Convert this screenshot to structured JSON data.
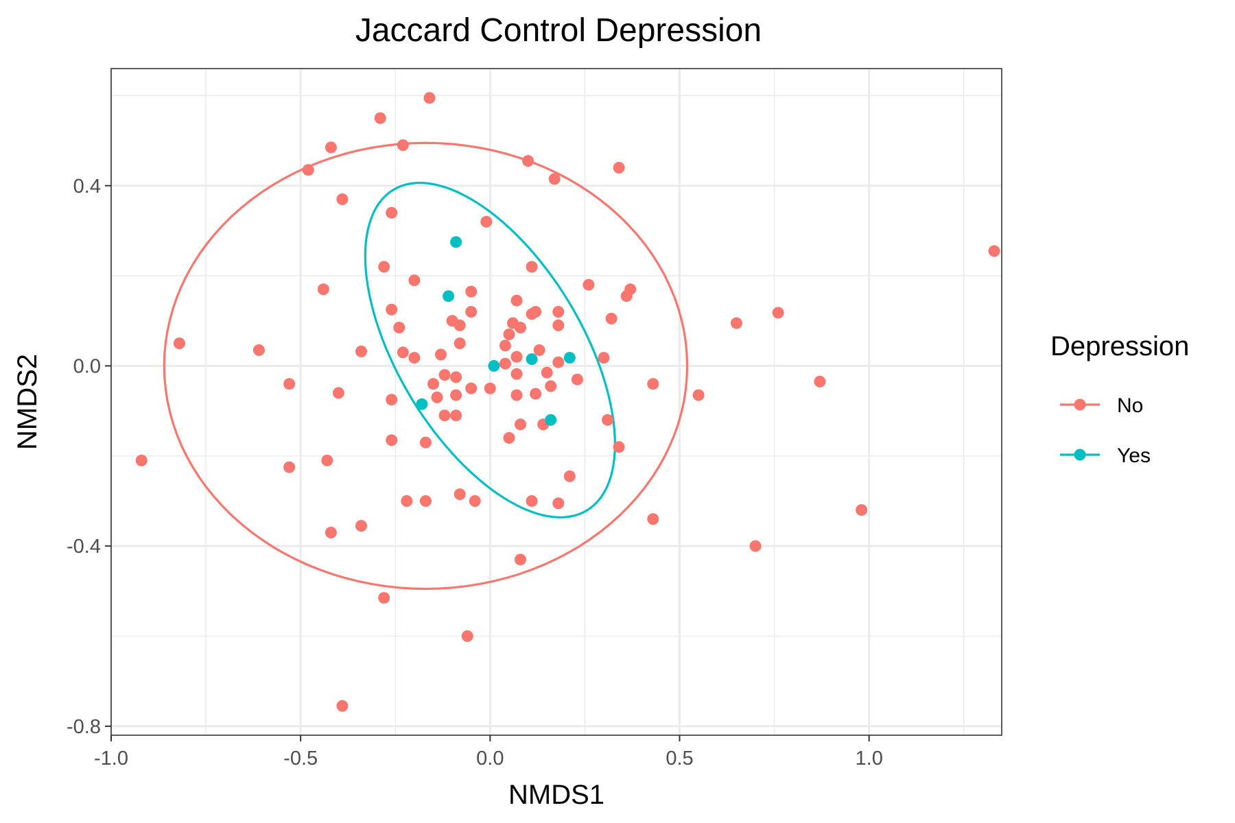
{
  "chart_data": {
    "type": "scatter",
    "title": "Jaccard Control Depression",
    "xlabel": "NMDS1",
    "ylabel": "NMDS2",
    "xlim": [
      -1.0,
      1.35
    ],
    "ylim": [
      -0.82,
      0.66
    ],
    "x_ticks": [
      -1.0,
      -0.5,
      0.0,
      0.5,
      1.0
    ],
    "x_tick_labels": [
      "-1.0",
      "-0.5",
      "0.0",
      "0.5",
      "1.0"
    ],
    "y_ticks": [
      -0.8,
      -0.4,
      0.0,
      0.4
    ],
    "y_tick_labels": [
      "-0.8",
      "-0.4",
      "0.0",
      "0.4"
    ],
    "grid": true,
    "legend": {
      "title": "Depression",
      "position": "right"
    },
    "series": [
      {
        "name": "No",
        "color": "#F8766D",
        "ellipse": {
          "center": [
            -0.17,
            0.0
          ],
          "semi_axes": [
            0.69,
            0.495
          ],
          "rotation_deg": 0
        },
        "points": [
          [
            -0.16,
            0.595
          ],
          [
            -0.29,
            0.55
          ],
          [
            -0.42,
            0.485
          ],
          [
            -0.23,
            0.49
          ],
          [
            -0.48,
            0.435
          ],
          [
            0.1,
            0.455
          ],
          [
            0.34,
            0.44
          ],
          [
            0.17,
            0.415
          ],
          [
            -0.39,
            0.37
          ],
          [
            -0.26,
            0.34
          ],
          [
            -0.01,
            0.32
          ],
          [
            1.33,
            0.255
          ],
          [
            -0.28,
            0.22
          ],
          [
            0.11,
            0.22
          ],
          [
            -0.2,
            0.19
          ],
          [
            0.26,
            0.18
          ],
          [
            0.37,
            0.17
          ],
          [
            -0.44,
            0.17
          ],
          [
            -0.05,
            0.165
          ],
          [
            0.36,
            0.155
          ],
          [
            0.07,
            0.145
          ],
          [
            -0.26,
            0.125
          ],
          [
            0.12,
            0.12
          ],
          [
            -0.05,
            0.12
          ],
          [
            0.11,
            0.115
          ],
          [
            0.18,
            0.12
          ],
          [
            0.76,
            0.118
          ],
          [
            0.32,
            0.105
          ],
          [
            -0.1,
            0.1
          ],
          [
            -0.08,
            0.09
          ],
          [
            0.06,
            0.095
          ],
          [
            0.18,
            0.09
          ],
          [
            0.65,
            0.095
          ],
          [
            -0.24,
            0.085
          ],
          [
            0.08,
            0.085
          ],
          [
            0.05,
            0.07
          ],
          [
            -0.08,
            0.05
          ],
          [
            -0.82,
            0.05
          ],
          [
            0.04,
            0.045
          ],
          [
            -0.61,
            0.035
          ],
          [
            -0.34,
            0.032
          ],
          [
            -0.23,
            0.03
          ],
          [
            0.13,
            0.035
          ],
          [
            -0.13,
            0.025
          ],
          [
            0.07,
            0.02
          ],
          [
            -0.2,
            0.018
          ],
          [
            0.3,
            0.018
          ],
          [
            0.18,
            0.008
          ],
          [
            0.04,
            0.005
          ],
          [
            0.15,
            -0.015
          ],
          [
            -0.12,
            -0.02
          ],
          [
            -0.09,
            -0.025
          ],
          [
            0.07,
            -0.018
          ],
          [
            0.23,
            -0.03
          ],
          [
            -0.15,
            -0.04
          ],
          [
            0.43,
            -0.04
          ],
          [
            0.87,
            -0.035
          ],
          [
            -0.53,
            -0.04
          ],
          [
            0.16,
            -0.045
          ],
          [
            -0.05,
            -0.05
          ],
          [
            0.0,
            -0.05
          ],
          [
            -0.4,
            -0.06
          ],
          [
            -0.09,
            -0.065
          ],
          [
            -0.14,
            -0.07
          ],
          [
            0.07,
            -0.065
          ],
          [
            0.12,
            -0.062
          ],
          [
            0.55,
            -0.065
          ],
          [
            -0.26,
            -0.075
          ],
          [
            -0.12,
            -0.11
          ],
          [
            -0.09,
            -0.11
          ],
          [
            0.31,
            -0.12
          ],
          [
            0.08,
            -0.13
          ],
          [
            0.14,
            -0.13
          ],
          [
            -0.26,
            -0.165
          ],
          [
            0.05,
            -0.16
          ],
          [
            -0.17,
            -0.17
          ],
          [
            0.34,
            -0.18
          ],
          [
            -0.92,
            -0.21
          ],
          [
            -0.43,
            -0.21
          ],
          [
            -0.53,
            -0.225
          ],
          [
            0.21,
            -0.245
          ],
          [
            -0.08,
            -0.285
          ],
          [
            -0.22,
            -0.3
          ],
          [
            -0.17,
            -0.3
          ],
          [
            -0.04,
            -0.3
          ],
          [
            0.11,
            -0.3
          ],
          [
            0.18,
            -0.305
          ],
          [
            0.98,
            -0.32
          ],
          [
            0.43,
            -0.34
          ],
          [
            -0.34,
            -0.355
          ],
          [
            -0.42,
            -0.37
          ],
          [
            0.7,
            -0.4
          ],
          [
            0.08,
            -0.43
          ],
          [
            -0.28,
            -0.515
          ],
          [
            -0.06,
            -0.6
          ],
          [
            -0.39,
            -0.755
          ]
        ]
      },
      {
        "name": "Yes",
        "color": "#00BFC4",
        "ellipse": {
          "center": [
            0.0,
            0.035
          ],
          "semi_axes": [
            0.44,
            0.23
          ],
          "rotation_deg": -51
        },
        "points": [
          [
            -0.09,
            0.275
          ],
          [
            -0.11,
            0.155
          ],
          [
            0.21,
            0.018
          ],
          [
            0.11,
            0.015
          ],
          [
            0.01,
            0.0
          ],
          [
            -0.18,
            -0.085
          ],
          [
            0.16,
            -0.12
          ]
        ]
      }
    ]
  }
}
